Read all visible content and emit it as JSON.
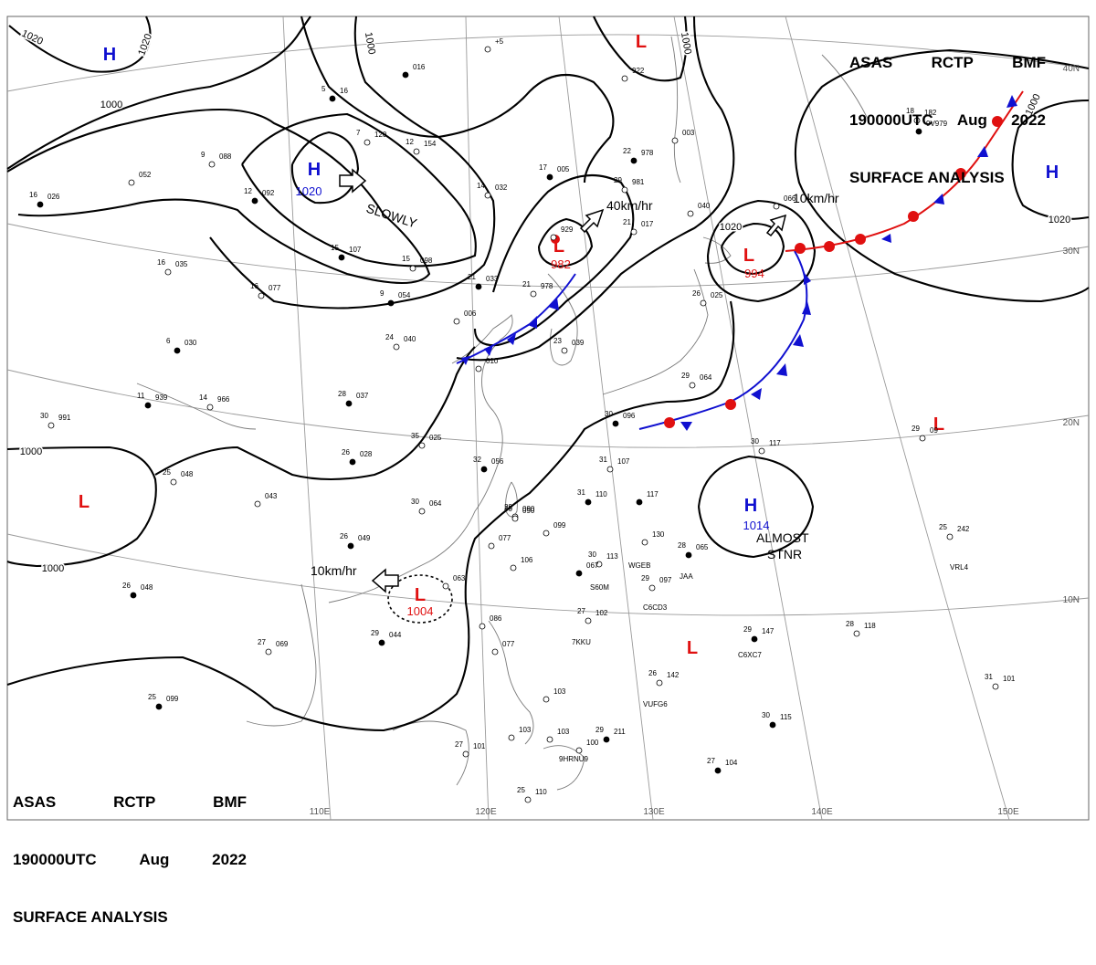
{
  "header": {
    "line1": [
      "ASAS",
      "RCTP",
      "BMF"
    ],
    "line2": [
      "190000UTC",
      "Aug",
      "2022"
    ],
    "line3": "SURFACE ANALYSIS"
  },
  "colors": {
    "high": "#1010d0",
    "low": "#e01010",
    "isobar": "#000000",
    "grid": "#9a9a9a",
    "coast": "#7a7a7a",
    "warm_front": "#e01010",
    "cold_front": "#1010d0"
  },
  "axes": {
    "longitude_labels": [
      "110E",
      "120E",
      "130E",
      "140E",
      "150E"
    ],
    "latitude_labels": [
      "40N",
      "30N",
      "20N",
      "10N"
    ]
  },
  "isobar_labels": [
    "1020",
    "1020",
    "1000",
    "1000",
    "1000",
    "1000",
    "1000",
    "1000",
    "1020",
    "1020"
  ],
  "pressure_systems": [
    {
      "type": "H",
      "value": "1020",
      "name": "high-mongolia"
    },
    {
      "type": "H",
      "value": "",
      "name": "high-northwest"
    },
    {
      "type": "L",
      "value": "",
      "name": "low-okhotsk"
    },
    {
      "type": "L",
      "value": "982",
      "name": "low-manchuria"
    },
    {
      "type": "L",
      "value": "994",
      "name": "low-east-sea"
    },
    {
      "type": "H",
      "value": "",
      "name": "high-pacific"
    },
    {
      "type": "H",
      "value": "1014",
      "name": "high-philippine-sea"
    },
    {
      "type": "L",
      "value": "1004",
      "name": "low-south-china-sea"
    },
    {
      "type": "L",
      "value": "",
      "name": "low-bay-of-bengal"
    },
    {
      "type": "L",
      "value": "",
      "name": "low-west-pacific"
    },
    {
      "type": "L",
      "value": "",
      "name": "low-tropical-pacific"
    }
  ],
  "motions": [
    {
      "text": "SLOWLY",
      "name": "motion-mongolia-high"
    },
    {
      "text": "40km/hr",
      "name": "motion-manchuria-low"
    },
    {
      "text": "10km/hr",
      "name": "motion-east-sea-low"
    },
    {
      "text": "10km/hr",
      "name": "motion-scs-low"
    },
    {
      "text": "ALMOST",
      "name": "motion-phil-high-1"
    },
    {
      "text": "STNR",
      "name": "motion-phil-high-2"
    }
  ],
  "station_plots": [
    {
      "t": "",
      "p": "016"
    },
    {
      "t": "",
      "p": "+5"
    },
    {
      "t": "",
      "p": "922"
    },
    {
      "t": "5",
      "p": "16"
    },
    {
      "t": "7",
      "p": "120"
    },
    {
      "t": "12",
      "p": "154"
    },
    {
      "t": "22",
      "p": "978"
    },
    {
      "t": "",
      "p": "003"
    },
    {
      "t": "18",
      "p": "182"
    },
    {
      "t": "",
      "p": "9V979"
    },
    {
      "t": "9",
      "p": "088"
    },
    {
      "t": "",
      "p": "052"
    },
    {
      "t": "17",
      "p": "005"
    },
    {
      "t": "14",
      "p": "032"
    },
    {
      "t": "29",
      "p": "981"
    },
    {
      "t": "12",
      "p": "092"
    },
    {
      "t": "",
      "p": "040"
    },
    {
      "t": "",
      "p": "066"
    },
    {
      "t": "16",
      "p": "026"
    },
    {
      "t": "",
      "p": "929"
    },
    {
      "t": "21",
      "p": "017"
    },
    {
      "t": "15",
      "p": "107"
    },
    {
      "t": "15",
      "p": "098"
    },
    {
      "t": "16",
      "p": "035"
    },
    {
      "t": "21",
      "p": "033"
    },
    {
      "t": "21",
      "p": "978"
    },
    {
      "t": "16",
      "p": "077"
    },
    {
      "t": "9",
      "p": "054"
    },
    {
      "t": "",
      "p": "006"
    },
    {
      "t": "26",
      "p": "025"
    },
    {
      "t": "6",
      "p": "030"
    },
    {
      "t": "24",
      "p": "040"
    },
    {
      "t": "23",
      "p": "039"
    },
    {
      "t": "11",
      "p": "939"
    },
    {
      "t": "14",
      "p": "966"
    },
    {
      "t": "",
      "p": "010"
    },
    {
      "t": "28",
      "p": "037"
    },
    {
      "t": "29",
      "p": "064"
    },
    {
      "t": "30",
      "p": "991"
    },
    {
      "t": "30",
      "p": "096"
    },
    {
      "t": "35",
      "p": "025"
    },
    {
      "t": "29",
      "p": "090"
    },
    {
      "t": "26",
      "p": "028"
    },
    {
      "t": "30",
      "p": "117"
    },
    {
      "t": "25",
      "p": "048"
    },
    {
      "t": "32",
      "p": "056"
    },
    {
      "t": "31",
      "p": "107"
    },
    {
      "t": "30",
      "p": "064"
    },
    {
      "t": "31",
      "p": "110"
    },
    {
      "t": "",
      "p": "043"
    },
    {
      "t": "30",
      "p": "090"
    },
    {
      "t": "",
      "p": "117"
    },
    {
      "t": "25",
      "p": "242"
    },
    {
      "t": "",
      "p": "099"
    },
    {
      "t": "26",
      "p": "049"
    },
    {
      "t": "",
      "p": "077"
    },
    {
      "t": "",
      "p": "130"
    },
    {
      "t": "28",
      "p": "065"
    },
    {
      "t": "30",
      "p": "113"
    },
    {
      "t": "",
      "p": "106"
    },
    {
      "t": "",
      "p": "067"
    },
    {
      "t": "",
      "p": "063"
    },
    {
      "t": "29",
      "p": "097"
    },
    {
      "t": "26",
      "p": "048"
    },
    {
      "t": "27",
      "p": "102"
    },
    {
      "t": "",
      "p": "086"
    },
    {
      "t": "29",
      "p": "147"
    },
    {
      "t": "28",
      "p": "118"
    },
    {
      "t": "27",
      "p": "069"
    },
    {
      "t": "29",
      "p": "044"
    },
    {
      "t": "",
      "p": "077"
    },
    {
      "t": "26",
      "p": "142"
    },
    {
      "t": "25",
      "p": "099"
    },
    {
      "t": "31",
      "p": "101"
    },
    {
      "t": "",
      "p": "103"
    },
    {
      "t": "30",
      "p": "115"
    },
    {
      "t": "",
      "p": "103"
    },
    {
      "t": "",
      "p": "103"
    },
    {
      "t": "29",
      "p": "211"
    },
    {
      "t": "27",
      "p": "101"
    },
    {
      "t": "",
      "p": "100"
    },
    {
      "t": "27",
      "p": "104"
    },
    {
      "t": "25",
      "p": "110"
    },
    {
      "t": "29",
      "p": "09"
    }
  ],
  "callsigns": [
    "WGEB",
    "S60M",
    "C6CD3",
    "7KKU",
    "C6XC7",
    "VRL4",
    "VUFG6",
    "9HRNU9",
    "JAA"
  ]
}
